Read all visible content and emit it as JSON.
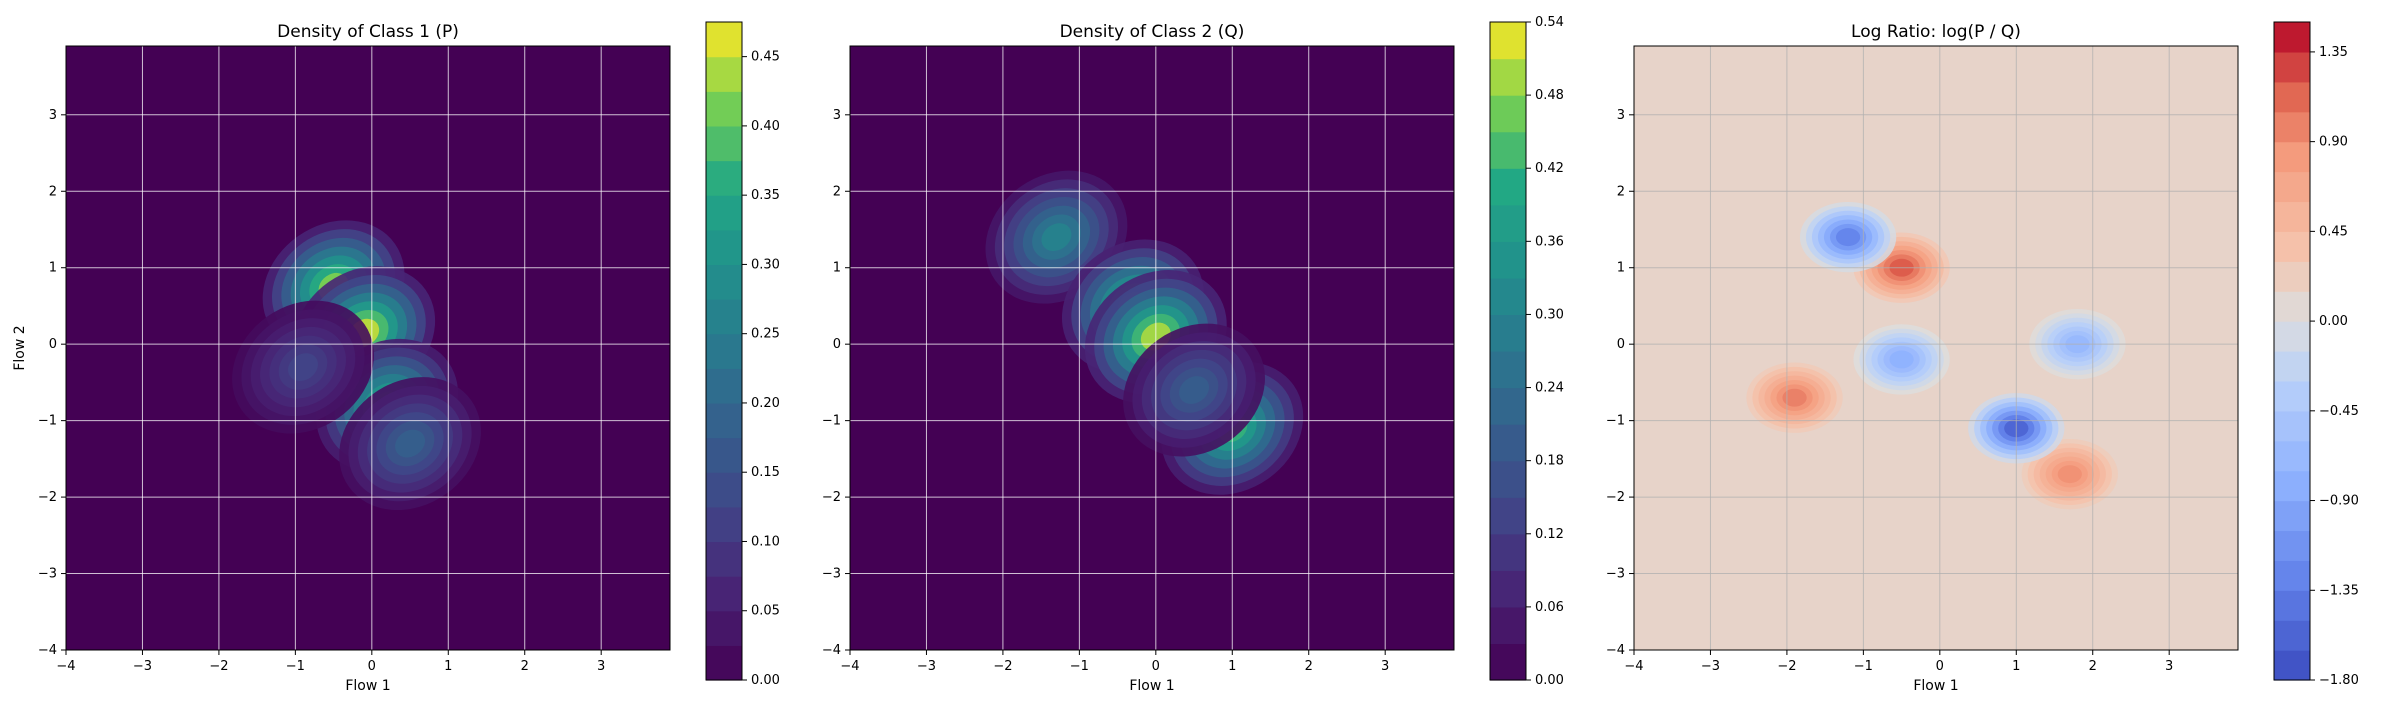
{
  "chart_data": [
    {
      "type": "heatmap",
      "title": "Density of Class 1 (P)",
      "xlabel": "Flow 1",
      "ylabel": "Flow 2",
      "xlim": [
        -4,
        3.9
      ],
      "ylim": [
        -4,
        3.9
      ],
      "x_ticks": [
        -4,
        -3,
        -2,
        -1,
        0,
        1,
        2,
        3
      ],
      "y_ticks": [
        -4,
        -3,
        -2,
        -1,
        0,
        1,
        2,
        3
      ],
      "grid": true,
      "colormap": "viridis",
      "colorbar": {
        "range": [
          0,
          0.475
        ],
        "levels": 19,
        "ticks": [
          "0.00",
          "0.05",
          "0.10",
          "0.15",
          "0.20",
          "0.25",
          "0.30",
          "0.35",
          "0.40",
          "0.45"
        ],
        "values": [
          0,
          0.05,
          0.1,
          0.15,
          0.2,
          0.25,
          0.3,
          0.35,
          0.4,
          0.45
        ]
      },
      "blobs": [
        {
          "x": -0.5,
          "y": 0.75,
          "peak": 0.42
        },
        {
          "x": -0.1,
          "y": 0.15,
          "peak": 0.45
        },
        {
          "x": 0.2,
          "y": -0.8,
          "peak": 0.36
        },
        {
          "x": 0.5,
          "y": -1.3,
          "peak": 0.18
        },
        {
          "x": -0.9,
          "y": -0.3,
          "peak": 0.12
        }
      ]
    },
    {
      "type": "heatmap",
      "title": "Density of Class 2 (Q)",
      "xlabel": "Flow 1",
      "ylabel": "",
      "xlim": [
        -4,
        3.9
      ],
      "ylim": [
        -4,
        3.9
      ],
      "x_ticks": [
        -4,
        -3,
        -2,
        -1,
        0,
        1,
        2,
        3
      ],
      "y_ticks": [
        -4,
        -3,
        -2,
        -1,
        0,
        1,
        2,
        3
      ],
      "grid": true,
      "colormap": "viridis",
      "colorbar": {
        "range": [
          0,
          0.54
        ],
        "levels": 18,
        "ticks": [
          "0.00",
          "0.06",
          "0.12",
          "0.18",
          "0.24",
          "0.30",
          "0.36",
          "0.42",
          "0.48",
          "0.54"
        ],
        "values": [
          0,
          0.06,
          0.12,
          0.18,
          0.24,
          0.3,
          0.36,
          0.42,
          0.48,
          0.54
        ]
      },
      "blobs": [
        {
          "x": -1.3,
          "y": 1.4,
          "peak": 0.3
        },
        {
          "x": -0.3,
          "y": 0.5,
          "peak": 0.45
        },
        {
          "x": 0.0,
          "y": 0.1,
          "peak": 0.5
        },
        {
          "x": 1.0,
          "y": -1.1,
          "peak": 0.42
        },
        {
          "x": 0.5,
          "y": -0.6,
          "peak": 0.2
        }
      ]
    },
    {
      "type": "heatmap",
      "title": "Log Ratio: log(P / Q)",
      "xlabel": "Flow 1",
      "ylabel": "",
      "xlim": [
        -4,
        3.9
      ],
      "ylim": [
        -4,
        3.9
      ],
      "x_ticks": [
        -4,
        -3,
        -2,
        -1,
        0,
        1,
        2,
        3
      ],
      "y_ticks": [
        -4,
        -3,
        -2,
        -1,
        0,
        1,
        2,
        3
      ],
      "grid": true,
      "colormap": "coolwarm",
      "colorbar": {
        "range": [
          -1.8,
          1.5
        ],
        "levels": 22,
        "ticks": [
          "−1.80",
          "−1.35",
          "−0.90",
          "−0.45",
          "0.00",
          "0.45",
          "0.90",
          "1.35"
        ],
        "values": [
          -1.8,
          -1.35,
          -0.9,
          -0.45,
          0,
          0.45,
          0.9,
          1.35
        ]
      },
      "blobs": [
        {
          "x": -0.5,
          "y": 1.0,
          "peak": 1.2
        },
        {
          "x": -1.9,
          "y": -0.7,
          "peak": 1.0
        },
        {
          "x": 1.7,
          "y": -1.7,
          "peak": 0.9
        },
        {
          "x": -1.2,
          "y": 1.4,
          "peak": -1.3
        },
        {
          "x": 1.0,
          "y": -1.1,
          "peak": -1.6
        },
        {
          "x": -0.5,
          "y": -0.2,
          "peak": -0.8
        },
        {
          "x": 1.8,
          "y": 0.0,
          "peak": -0.7
        }
      ]
    }
  ]
}
